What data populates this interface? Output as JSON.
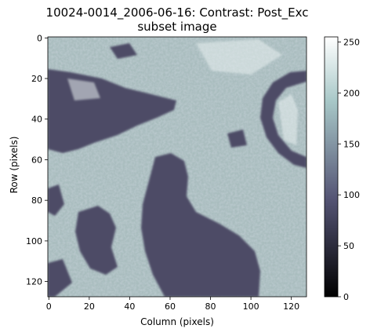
{
  "title_line1": "10024-0014_2006-06-16: Contrast: Post_Exc",
  "title_line2": "subset image",
  "chart_data": {
    "type": "heatmap",
    "title": "10024-0014_2006-06-16: Contrast: Post_Exc subset image",
    "xlabel": "Column (pixels)",
    "ylabel": "Row (pixels)",
    "xlim": [
      0,
      127
    ],
    "ylim": [
      127,
      0
    ],
    "x_ticks": [
      0,
      20,
      40,
      60,
      80,
      100,
      120
    ],
    "y_ticks": [
      0,
      20,
      40,
      60,
      80,
      100,
      120
    ],
    "colorbar": {
      "colormap": "bone",
      "range": [
        0,
        255
      ],
      "ticks": [
        0,
        50,
        100,
        150,
        200,
        250
      ]
    },
    "grid": false,
    "image_size": [
      128,
      128
    ],
    "dark_regions": [
      "upper-left region near rows 15-55, columns 0-65",
      "central-left body near rows 55-128, columns 45-110",
      "right ring structure near rows 20-75, columns 105-127",
      "lower-left patch near rows 85-110, columns 15-35"
    ]
  }
}
